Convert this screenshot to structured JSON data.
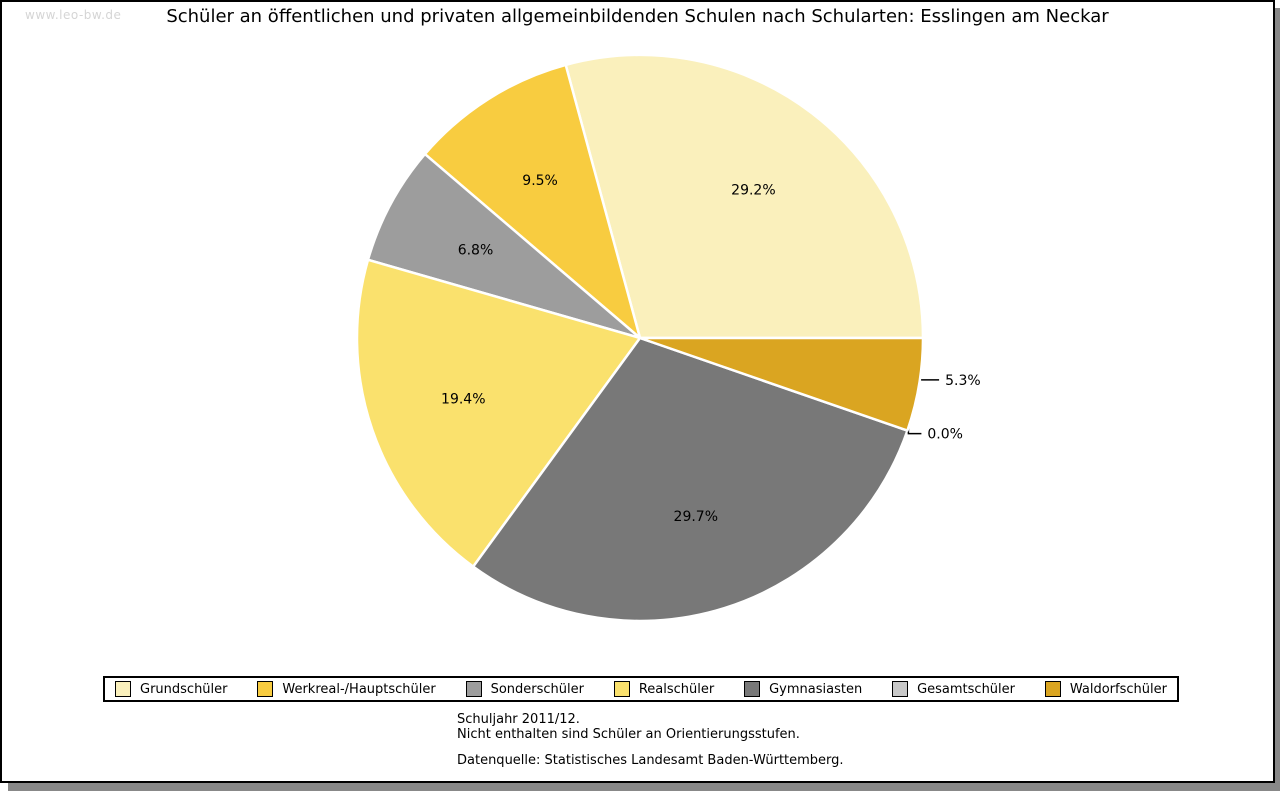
{
  "watermark": "www.leo-bw.de",
  "title": "Schüler an öffentlichen und privaten allgemeinbildenden Schulen nach Schularten: Esslingen am Neckar",
  "chart_data": {
    "type": "pie",
    "title": "Schüler an öffentlichen und privaten allgemeinbildenden Schulen nach Schularten: Esslingen am Neckar",
    "unit": "percent",
    "legend_position": "bottom",
    "direction": "counterclockwise",
    "start_angle_deg": 0,
    "slices": [
      {
        "label": "Grundschüler",
        "value": 29.2,
        "pct_label": "29.2%",
        "color": "#FAF0BC",
        "label_placement": "inside"
      },
      {
        "label": "Werkreal-/Hauptschüler",
        "value": 9.5,
        "pct_label": "9.5%",
        "color": "#F8CC40",
        "label_placement": "inside"
      },
      {
        "label": "Sonderschüler",
        "value": 6.8,
        "pct_label": "6.8%",
        "color": "#9D9D9D",
        "label_placement": "inside"
      },
      {
        "label": "Realschüler",
        "value": 19.4,
        "pct_label": "19.4%",
        "color": "#FAE16D",
        "label_placement": "inside"
      },
      {
        "label": "Gymnasiasten",
        "value": 29.7,
        "pct_label": "29.7%",
        "color": "#787878",
        "label_placement": "inside"
      },
      {
        "label": "Gesamtschüler",
        "value": 0.0,
        "pct_label": "0.0%",
        "color": "#C8C8C8",
        "label_placement": "outside"
      },
      {
        "label": "Waldorfschüler",
        "value": 5.3,
        "pct_label": "5.3%",
        "color": "#DAA521",
        "label_placement": "outside"
      }
    ]
  },
  "footer": {
    "line1": "Schuljahr 2011/12.",
    "line2": "Nicht enthalten sind Schüler an Orientierungsstufen.",
    "source": "Datenquelle: Statistisches Landesamt Baden-Württemberg."
  }
}
